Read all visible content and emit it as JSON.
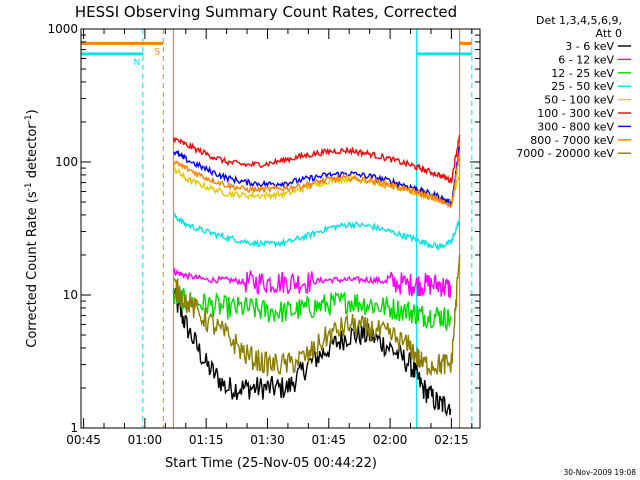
{
  "chart_data": {
    "type": "line",
    "title": "HESSI Observing Summary Count Rates, Corrected",
    "xlabel": "Start Time (25-Nov-05 00:44:22)",
    "ylabel": "Corrected Count Rate (s⁻¹ detector⁻¹)",
    "ylog": true,
    "ylim": [
      1,
      1000
    ],
    "xlim": [
      "00:44:22",
      "02:22:00"
    ],
    "x_ticks": [
      "00:45",
      "01:00",
      "01:15",
      "01:30",
      "01:45",
      "02:00",
      "02:15"
    ],
    "y_ticks": [
      "1",
      "10",
      "100",
      "1000"
    ],
    "legend_header": [
      "Det 1,3,4,5,6,9,",
      "Att 0"
    ],
    "legend_position": "right",
    "x": [
      "01:07",
      "01:10",
      "01:15",
      "01:20",
      "01:25",
      "01:30",
      "01:35",
      "01:40",
      "01:45",
      "01:50",
      "01:55",
      "02:00",
      "02:05",
      "02:08",
      "02:12",
      "02:15",
      "02:17"
    ],
    "series": [
      {
        "name": "3 - 6 keV",
        "color": "#000000",
        "values": [
          10,
          6,
          3,
          2,
          2,
          2,
          2,
          3,
          4,
          5,
          5,
          4,
          3,
          2,
          1.5,
          1.5,
          null
        ]
      },
      {
        "name": "6 - 12 keV",
        "color": "#ff00ff",
        "values": [
          15,
          14,
          13,
          13,
          12.5,
          12.5,
          12.5,
          12.5,
          13,
          13,
          13,
          12.5,
          12,
          12,
          12,
          11,
          null
        ]
      },
      {
        "name": "12 - 25 keV",
        "color": "#00dd00",
        "values": [
          10,
          9,
          8.5,
          8,
          8,
          7.5,
          7.5,
          8,
          8.5,
          9,
          8.5,
          8,
          7.5,
          7,
          7,
          6.5,
          null
        ]
      },
      {
        "name": "25 - 50 keV",
        "color": "#00e5e5",
        "values": [
          40,
          34,
          30,
          27,
          25,
          24,
          25,
          28,
          32,
          34,
          33,
          30,
          27,
          25,
          23,
          25,
          37
        ]
      },
      {
        "name": "50 - 100 keV",
        "color": "#e5c800",
        "values": [
          90,
          75,
          65,
          58,
          56,
          56,
          58,
          65,
          72,
          75,
          72,
          66,
          60,
          56,
          52,
          50,
          80
        ]
      },
      {
        "name": "100 - 300 keV",
        "color": "#ff0000",
        "values": [
          150,
          135,
          115,
          100,
          95,
          97,
          105,
          113,
          120,
          122,
          115,
          105,
          95,
          88,
          80,
          72,
          160
        ]
      },
      {
        "name": "300 - 800 keV",
        "color": "#0000ff",
        "values": [
          120,
          105,
          88,
          76,
          70,
          68,
          70,
          75,
          80,
          82,
          78,
          72,
          65,
          60,
          55,
          48,
          130
        ]
      },
      {
        "name": "800 - 7000 keV",
        "color": "#ff8000",
        "values": [
          100,
          90,
          76,
          67,
          62,
          62,
          64,
          68,
          74,
          76,
          73,
          67,
          61,
          57,
          52,
          46,
          120
        ]
      },
      {
        "name": "7000 - 20000 keV",
        "color": "#8b7d00",
        "values": [
          12,
          9,
          6.5,
          5,
          3.5,
          3,
          3,
          3.5,
          5,
          6,
          5.5,
          5,
          4,
          3,
          3,
          3,
          20
        ]
      }
    ],
    "flags": [
      {
        "label": "N",
        "color": "#00e5e5",
        "start": "00:44:22",
        "end": "00:59:30",
        "level": 650,
        "end_marker": "dashed"
      },
      {
        "label": "S",
        "color": "#ff8000",
        "start": "00:44:22",
        "end": "01:04:30",
        "level": 780,
        "end_marker": "dashed"
      },
      {
        "label": "",
        "color": "#00e5e5",
        "start": "02:06:30",
        "end": "02:20:00",
        "level": 650,
        "end_marker": "dashed"
      },
      {
        "label": "",
        "color": "#ff8000",
        "start": "02:17:00",
        "end": "02:20:00",
        "level": 780,
        "end_marker": "none"
      }
    ],
    "vertical_markers": [
      {
        "time": "01:07:00",
        "color": "#ff8000",
        "style": "solid"
      },
      {
        "time": "02:06:30",
        "color": "#00e5e5",
        "style": "solid"
      },
      {
        "time": "02:17:00",
        "color": "#ff8000",
        "style": "solid"
      }
    ],
    "footer": "30-Nov-2009 19:08"
  }
}
